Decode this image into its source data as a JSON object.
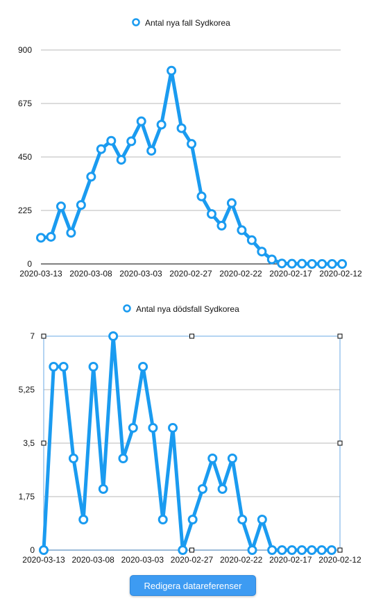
{
  "accent_color": "#1a9bf0",
  "button": {
    "label": "Redigera datareferenser"
  },
  "chart_data": [
    {
      "type": "line",
      "legend": "Antal nya fall Sydkorea",
      "legend_position": "top-center",
      "grid": true,
      "ylim": [
        0,
        900
      ],
      "y_ticks": [
        "900",
        "675",
        "450",
        "225",
        "0"
      ],
      "y_tick_values": [
        900,
        675,
        450,
        225,
        0
      ],
      "x_tick_labels": [
        "2020-03-13",
        "2020-03-08",
        "2020-03-03",
        "2020-02-27",
        "2020-02-22",
        "2020-02-17",
        "2020-02-12"
      ],
      "series": [
        {
          "values": [
            110,
            114,
            242,
            131,
            248,
            367,
            483,
            518,
            438,
            516,
            600,
            476,
            586,
            813,
            571,
            505,
            284,
            210,
            161,
            256,
            142,
            100,
            52,
            19,
            2,
            1,
            1,
            0,
            0,
            0,
            0
          ]
        }
      ]
    },
    {
      "type": "line",
      "legend": "Antal nya dödsfall Sydkorea",
      "legend_position": "top-center",
      "grid": true,
      "ylim": [
        0,
        7
      ],
      "y_ticks": [
        "7",
        "5,25",
        "3,5",
        "1,75",
        "0"
      ],
      "y_tick_values": [
        7,
        5.25,
        3.5,
        1.75,
        0
      ],
      "x_tick_labels": [
        "2020-03-13",
        "2020-03-08",
        "2020-03-03",
        "2020-02-27",
        "2020-02-22",
        "2020-02-17",
        "2020-02-12"
      ],
      "selected": true,
      "series": [
        {
          "values": [
            0,
            6,
            6,
            3,
            1,
            6,
            2,
            7,
            3,
            4,
            6,
            4,
            1,
            4,
            0,
            1,
            2,
            3,
            2,
            3,
            1,
            0,
            1,
            0,
            0,
            0,
            0,
            0,
            0,
            0
          ]
        }
      ]
    }
  ]
}
